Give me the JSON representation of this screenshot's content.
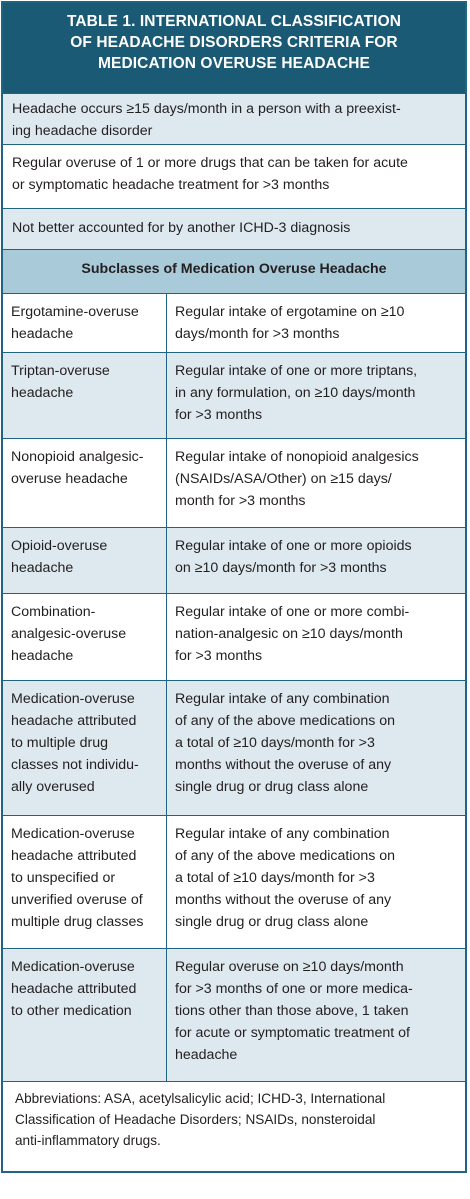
{
  "title": {
    "line1": "TABLE 1. INTERNATIONAL CLASSIFICATION",
    "line2": "OF HEADACHE DISORDERS CRITERIA FOR",
    "line3": "MEDICATION OVERUSE HEADACHE"
  },
  "criteria": [
    [
      "Headache occurs ≥15 days/month in a person with a preexist-",
      "ing headache disorder"
    ],
    [
      "Regular overuse of 1 or more drugs that can be taken for acute",
      "or symptomatic headache treatment for >3 months"
    ],
    [
      "Not better accounted for by another ICHD-3 diagnosis"
    ]
  ],
  "subclasses_heading": "Subclasses of Medication Overuse Headache",
  "subclasses": [
    {
      "name": [
        "Ergotamine-overuse",
        "headache"
      ],
      "criteria": [
        "Regular intake of ergotamine on ≥10",
        "days/month for >3 months"
      ]
    },
    {
      "name": [
        "Triptan-overuse",
        "headache"
      ],
      "criteria": [
        "Regular intake of one or more triptans,",
        "in any formulation, on ≥10 days/month",
        "for >3 months"
      ]
    },
    {
      "name": [
        "Nonopioid analgesic-",
        "overuse headache"
      ],
      "criteria": [
        "Regular intake of nonopioid analgesics",
        "(NSAIDs/ASA/Other) on ≥15 days/",
        "month for >3 months"
      ]
    },
    {
      "name": [
        "Opioid-overuse",
        "headache"
      ],
      "criteria": [
        "Regular intake of one or more opioids",
        "on ≥10 days/month for >3 months"
      ]
    },
    {
      "name": [
        "Combination-",
        "analgesic-overuse",
        "headache"
      ],
      "criteria": [
        "Regular intake of one or more combi-",
        "nation-analgesic on ≥10 days/month",
        "for >3 months"
      ]
    },
    {
      "name": [
        "Medication-overuse",
        "headache attributed",
        "to multiple drug",
        "classes not individu-",
        "ally overused"
      ],
      "criteria": [
        "Regular intake of any combination",
        "of any of the above medications on",
        "a total of ≥10 days/month for >3",
        "months without the overuse of any",
        "single drug or drug class alone"
      ]
    },
    {
      "name": [
        "Medication-overuse",
        "headache attributed",
        "to unspecified or",
        "unverified overuse of",
        "multiple drug classes"
      ],
      "criteria": [
        "Regular intake of any combination",
        "of any of the above medications on",
        "a total of ≥10 days/month for >3",
        "months without the overuse of any",
        "single drug or drug class alone"
      ]
    },
    {
      "name": [
        "Medication-overuse",
        "headache attributed",
        "to other medication"
      ],
      "criteria": [
        "Regular overuse on ≥10 days/month",
        "for >3 months of one or more medica-",
        "tions other than those above, 1 taken",
        "for acute or symptomatic treatment of",
        "headache"
      ]
    }
  ],
  "abbreviations": [
    "Abbreviations: ASA, acetylsalicylic acid; ICHD-3, International",
    "Classification of Headache Disorders; NSAIDs, nonsteroidal",
    "anti-inflammatory drugs."
  ],
  "colors": {
    "title_bg": "#1b5a74",
    "border": "#1f6582",
    "shade": "#dde9ef",
    "subhead_bg": "#a9cbd9"
  }
}
